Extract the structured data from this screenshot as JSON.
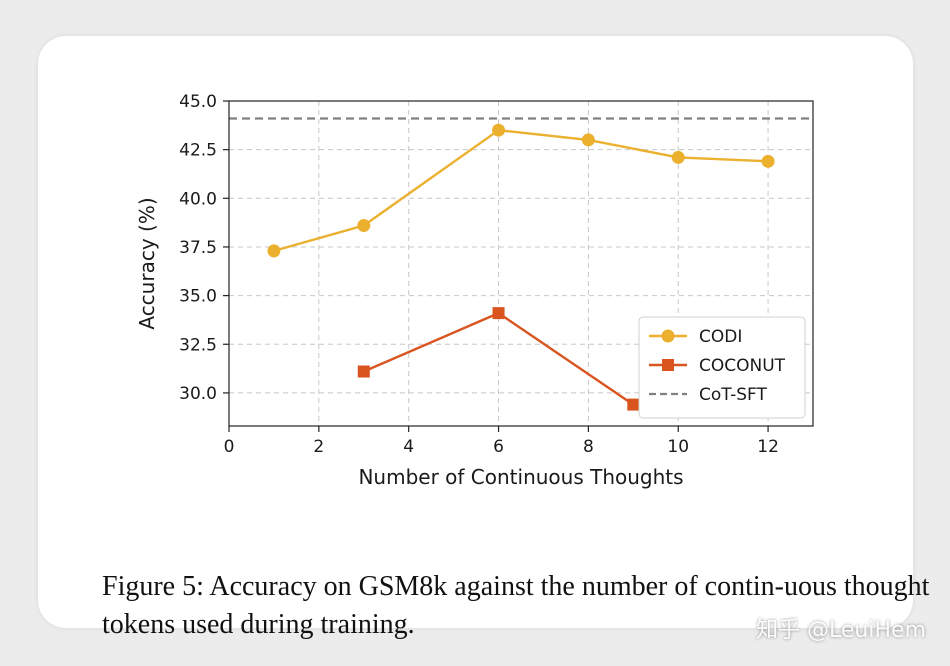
{
  "chart_data": {
    "type": "line",
    "title": "",
    "xlabel": "Number of Continuous Thoughts",
    "ylabel": "Accuracy (%)",
    "xlim": [
      0,
      13
    ],
    "ylim": [
      28.3,
      45.0
    ],
    "xticks": [
      0,
      2,
      4,
      6,
      8,
      10,
      12
    ],
    "yticks": [
      30.0,
      32.5,
      35.0,
      37.5,
      40.0,
      42.5,
      45.0
    ],
    "grid": true,
    "legend_position": "lower-right",
    "series": [
      {
        "name": "CODI",
        "color": "#EBB02E",
        "marker": "circle",
        "x": [
          1,
          3,
          6,
          8,
          10,
          12
        ],
        "y": [
          37.3,
          38.6,
          43.5,
          43.0,
          42.1,
          41.9
        ]
      },
      {
        "name": "COCONUT",
        "color": "#D9541E",
        "marker": "square",
        "x": [
          3,
          6,
          9
        ],
        "y": [
          31.1,
          34.1,
          29.4
        ]
      }
    ],
    "reference_lines": [
      {
        "name": "CoT-SFT",
        "color": "#808080",
        "style": "dashed",
        "y": 44.1
      }
    ]
  },
  "caption": {
    "label": "Figure 5:",
    "text": "Accuracy on GSM8k against the number of contin-uous thought tokens used during training."
  },
  "watermark": "知乎 @LeuiHem"
}
